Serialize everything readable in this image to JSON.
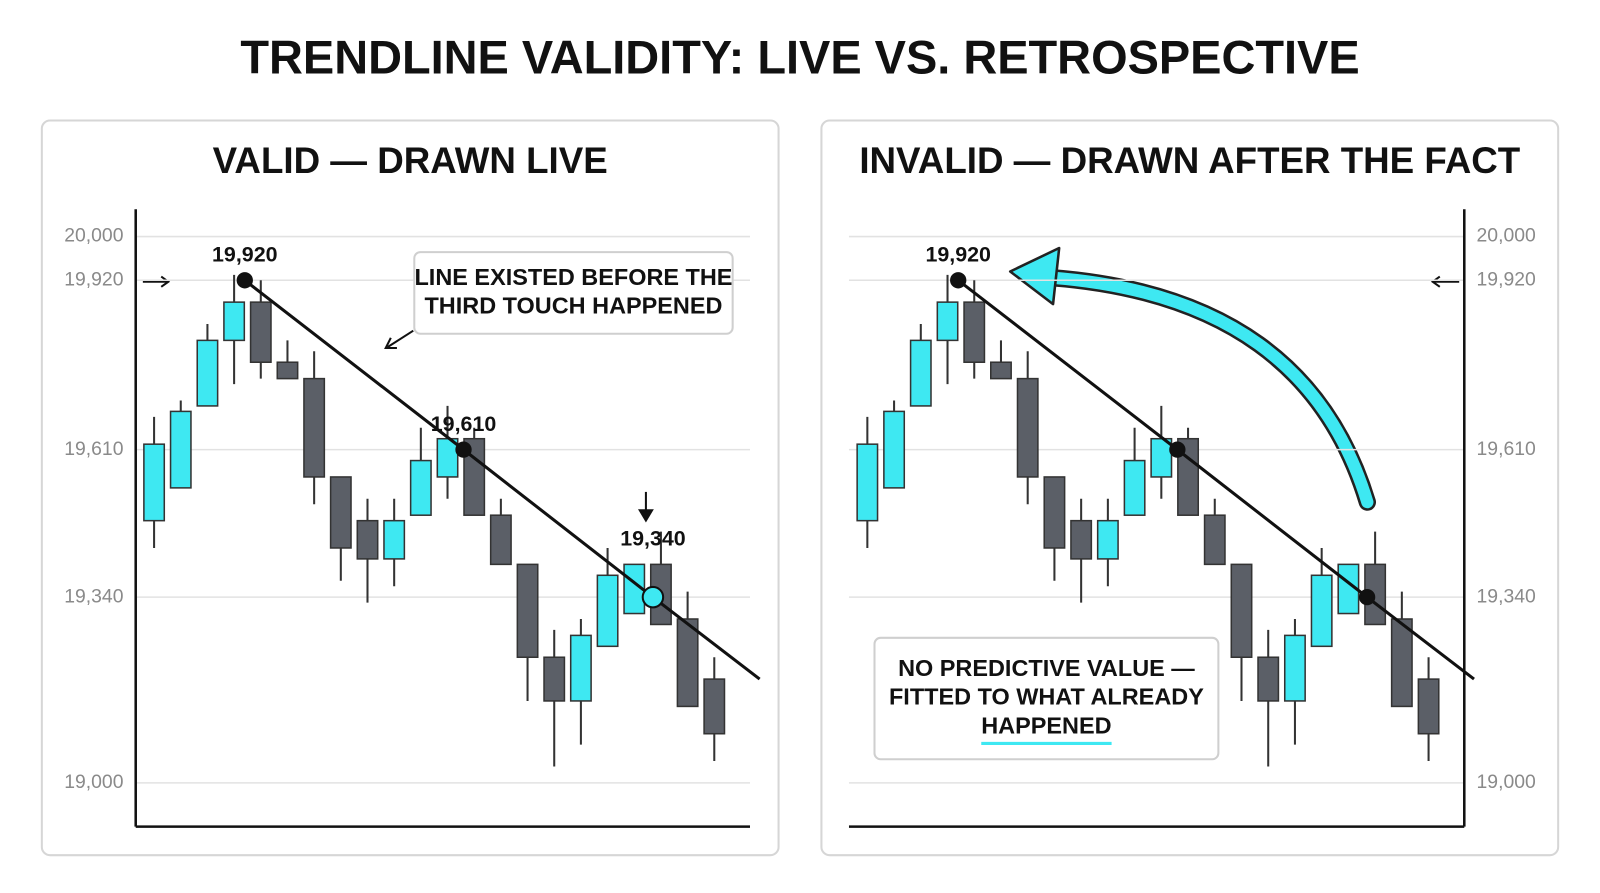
{
  "title": "TRENDLINE VALIDITY: LIVE VS. RETROSPECTIVE",
  "chart_data": [
    {
      "type": "candlestick",
      "title": "VALID — DRAWN LIVE",
      "axis_side": "left",
      "ylim": [
        18920,
        20050
      ],
      "yticks": [
        {
          "value": 19000,
          "label": "19,000"
        },
        {
          "value": 19340,
          "label": "19,340"
        },
        {
          "value": 19610,
          "label": "19,610"
        },
        {
          "value": 19920,
          "label": "19,920"
        },
        {
          "value": 20000,
          "label": "20,000"
        }
      ],
      "grid": true,
      "up_color": "#3ee8f2",
      "down_color": "#5b5f67",
      "candles": {
        "open": [
          19480,
          19540,
          19690,
          19810,
          19880,
          19770,
          19740,
          19560,
          19480,
          19410,
          19490,
          19560,
          19630,
          19490,
          19400,
          19230,
          19150,
          19250,
          19310,
          19400,
          19300,
          19190
        ],
        "high": [
          19670,
          19700,
          19840,
          19930,
          19920,
          19810,
          19790,
          19560,
          19520,
          19520,
          19650,
          19690,
          19650,
          19520,
          19400,
          19280,
          19300,
          19430,
          19400,
          19460,
          19350,
          19230
        ],
        "low": [
          19430,
          19540,
          19690,
          19730,
          19740,
          19740,
          19510,
          19370,
          19330,
          19360,
          19490,
          19520,
          19490,
          19400,
          19150,
          19030,
          19070,
          19250,
          19310,
          19290,
          19140,
          19040
        ],
        "close": [
          19620,
          19680,
          19810,
          19880,
          19770,
          19740,
          19560,
          19430,
          19410,
          19480,
          19590,
          19630,
          19490,
          19400,
          19230,
          19150,
          19270,
          19380,
          19400,
          19290,
          19140,
          19090
        ]
      },
      "trendline": {
        "points": [
          {
            "x": 3.4,
            "value": 19920,
            "label": "19,920"
          },
          {
            "x": 11.6,
            "value": 19610,
            "label": "19,610"
          },
          {
            "x": 18.7,
            "value": 19340,
            "label": "19,340",
            "color": "#3ee8f2"
          }
        ],
        "end": {
          "x": 22.7,
          "value": 19190
        }
      },
      "annotation": [
        "LINE EXISTED BEFORE THE",
        "THIRD TOUCH HAPPENED"
      ]
    },
    {
      "type": "candlestick",
      "title": "INVALID — DRAWN AFTER THE FACT",
      "axis_side": "right",
      "ylim": [
        18920,
        20050
      ],
      "yticks": [
        {
          "value": 19000,
          "label": "19,000"
        },
        {
          "value": 19340,
          "label": "19,340"
        },
        {
          "value": 19610,
          "label": "19,610"
        },
        {
          "value": 19920,
          "label": "19,920"
        },
        {
          "value": 20000,
          "label": "20,000"
        }
      ],
      "grid": true,
      "up_color": "#3ee8f2",
      "down_color": "#5b5f67",
      "candles": {
        "open": [
          19480,
          19540,
          19690,
          19810,
          19880,
          19770,
          19740,
          19560,
          19480,
          19410,
          19490,
          19560,
          19630,
          19490,
          19400,
          19230,
          19150,
          19250,
          19310,
          19400,
          19300,
          19190
        ],
        "high": [
          19670,
          19700,
          19840,
          19930,
          19920,
          19810,
          19790,
          19560,
          19520,
          19520,
          19650,
          19690,
          19650,
          19520,
          19400,
          19280,
          19300,
          19430,
          19400,
          19460,
          19350,
          19230
        ],
        "low": [
          19430,
          19540,
          19690,
          19730,
          19740,
          19740,
          19510,
          19370,
          19330,
          19360,
          19490,
          19520,
          19490,
          19400,
          19150,
          19030,
          19070,
          19250,
          19310,
          19290,
          19140,
          19040
        ],
        "close": [
          19620,
          19680,
          19810,
          19880,
          19770,
          19740,
          19560,
          19430,
          19410,
          19480,
          19590,
          19630,
          19490,
          19400,
          19230,
          19150,
          19270,
          19380,
          19400,
          19290,
          19140,
          19090
        ]
      },
      "trendline": {
        "points": [
          {
            "x": 3.4,
            "value": 19920,
            "label": "19,920"
          },
          {
            "x": 11.6,
            "value": 19610
          },
          {
            "x": 18.7,
            "value": 19340
          }
        ],
        "end": {
          "x": 22.7,
          "value": 19190
        }
      },
      "annotation": [
        "NO PREDICTIVE VALUE —",
        "FITTED TO WHAT ALREADY",
        "HAPPENED"
      ]
    }
  ]
}
